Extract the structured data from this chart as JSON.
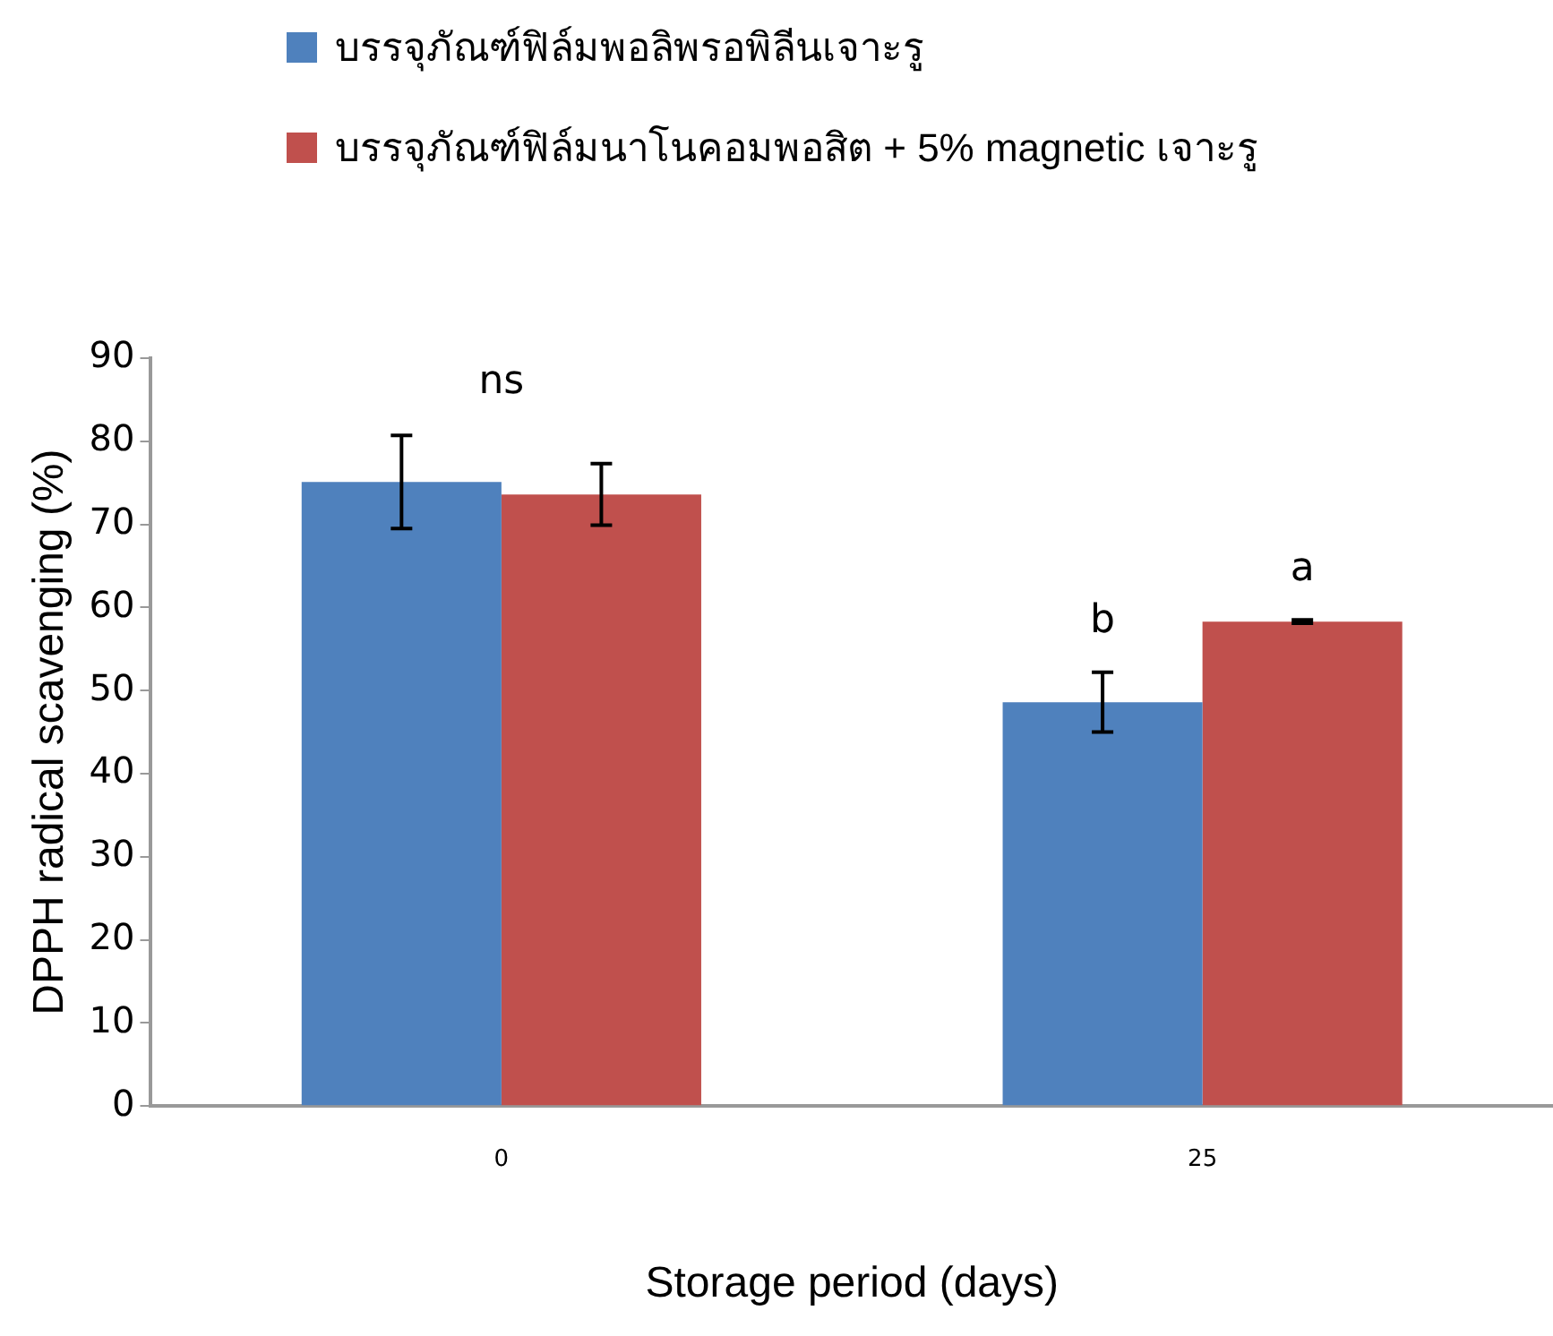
{
  "chart_data": {
    "type": "bar",
    "xlabel": "Storage period (days)",
    "ylabel": "DPPH radical scavenging (%)",
    "categories": [
      "0",
      "25"
    ],
    "series": [
      {
        "name": "บรรจุภัณฑ์ฟิล์มพอลิพรอพิลีนเจาะรู",
        "color": "#4f81bd",
        "values": [
          75.1,
          48.6
        ],
        "errors": [
          5.6,
          3.6
        ]
      },
      {
        "name": "บรรจุภัณฑ์ฟิล์มนาโนคอมพอสิต + 5% magnetic เจาะรู",
        "color": "#c0504d",
        "values": [
          73.6,
          58.3
        ],
        "errors": [
          3.7,
          0.2
        ]
      }
    ],
    "ylim": [
      0,
      90
    ],
    "yticks": [
      0,
      10,
      20,
      30,
      40,
      50,
      60,
      70,
      80,
      90
    ],
    "grid": false,
    "legend": "top",
    "annotations": [
      "ns",
      {
        "text": "b",
        "x": "25",
        "y": 48.6
      },
      {
        "text": "a",
        "x": "25",
        "y": 58.3
      }
    ]
  }
}
